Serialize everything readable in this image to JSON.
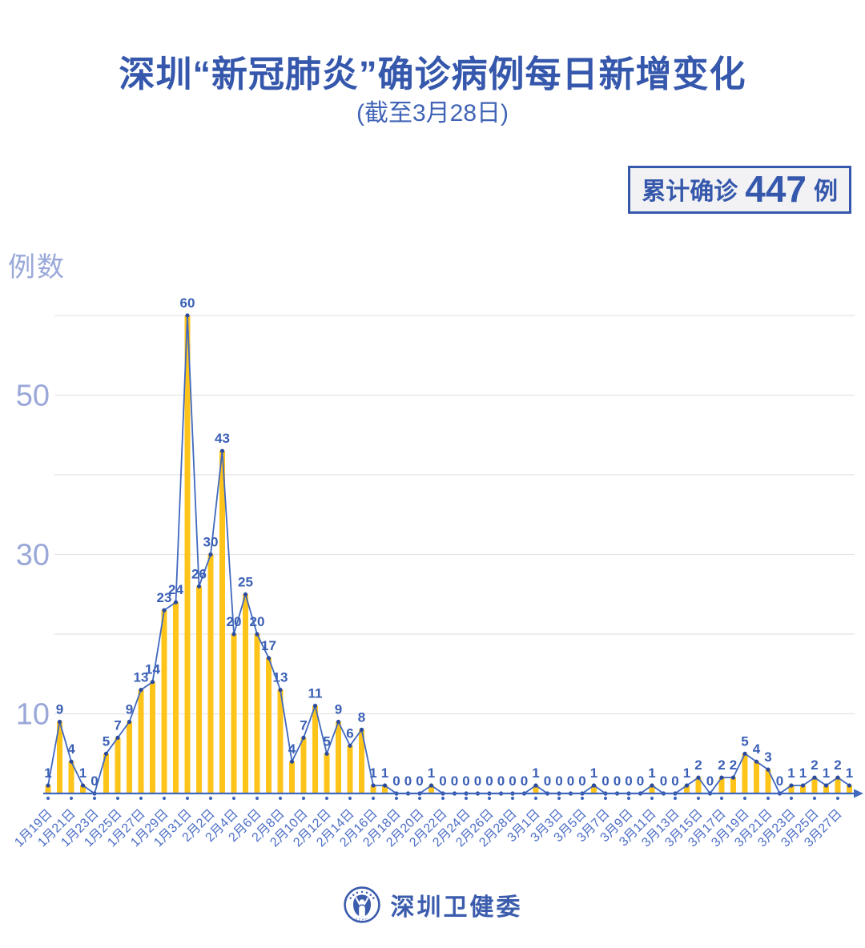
{
  "title": "深圳“新冠肺炎”确诊病例每日新增变化",
  "subtitle": "(截至3月28日)",
  "badge": {
    "prefix": "累计确诊",
    "value": "447",
    "suffix": "例"
  },
  "y_axis_label": "例数",
  "footer": {
    "org": "深圳卫健委",
    "logo": "szhc-emblem"
  },
  "colors": {
    "title_blue": "#3557ac",
    "subtitle_blue": "#4164b6",
    "line_blue": "#4068be",
    "dot_blue": "#2b4a9e",
    "label_blue": "#3a5fb5",
    "date_blue": "#4c6ec6",
    "axis_label_light": "#9aa8d9",
    "bar_yellow": "#ffc41a",
    "gridline": "#e4e4e6",
    "badge_bg": "#f2f2f4"
  },
  "chart_data": {
    "type": "bar",
    "overlay": "line",
    "title": "深圳“新冠肺炎”确诊病例每日新增变化（截至3月28日）",
    "xlabel": "",
    "ylabel": "例数",
    "ylim": [
      0,
      60
    ],
    "y_ticks_labeled": [
      10,
      30,
      50
    ],
    "y_grid_interval": 10,
    "grid": "horizontal",
    "legend": "none",
    "cumulative_total": 447,
    "x_label_step": 2,
    "x": [
      "1月19日",
      "1月20日",
      "1月21日",
      "1月22日",
      "1月23日",
      "1月24日",
      "1月25日",
      "1月26日",
      "1月27日",
      "1月28日",
      "1月29日",
      "1月30日",
      "1月31日",
      "2月1日",
      "2月2日",
      "2月3日",
      "2月4日",
      "2月5日",
      "2月6日",
      "2月7日",
      "2月8日",
      "2月9日",
      "2月10日",
      "2月11日",
      "2月12日",
      "2月13日",
      "2月14日",
      "2月15日",
      "2月16日",
      "2月17日",
      "2月18日",
      "2月19日",
      "2月20日",
      "2月21日",
      "2月22日",
      "2月23日",
      "2月24日",
      "2月25日",
      "2月26日",
      "2月27日",
      "2月28日",
      "2月29日",
      "3月1日",
      "3月2日",
      "3月3日",
      "3月4日",
      "3月5日",
      "3月6日",
      "3月7日",
      "3月8日",
      "3月9日",
      "3月10日",
      "3月11日",
      "3月12日",
      "3月13日",
      "3月14日",
      "3月15日",
      "3月16日",
      "3月17日",
      "3月18日",
      "3月19日",
      "3月20日",
      "3月21日",
      "3月22日",
      "3月23日",
      "3月24日",
      "3月25日",
      "3月26日",
      "3月27日",
      "3月28日"
    ],
    "values": [
      1,
      9,
      4,
      1,
      0,
      5,
      7,
      9,
      13,
      14,
      23,
      24,
      60,
      26,
      30,
      43,
      20,
      25,
      20,
      17,
      13,
      4,
      7,
      11,
      5,
      9,
      6,
      8,
      1,
      1,
      0,
      0,
      0,
      1,
      0,
      0,
      0,
      0,
      0,
      0,
      0,
      0,
      1,
      0,
      0,
      0,
      0,
      1,
      0,
      0,
      0,
      0,
      1,
      0,
      0,
      1,
      2,
      0,
      2,
      2,
      5,
      4,
      3,
      0,
      1,
      1,
      2,
      1,
      2,
      1
    ]
  }
}
